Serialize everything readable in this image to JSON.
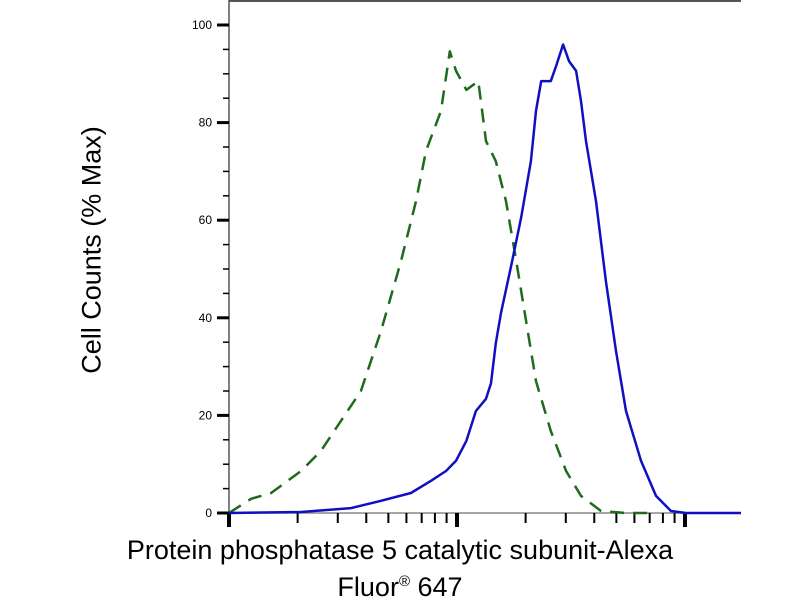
{
  "chart_data": {
    "type": "line",
    "title": "",
    "xlabel_line1": "Protein phosphatase 5 catalytic subunit-Alexa",
    "xlabel_line2_a": "Fluor",
    "xlabel_line2_sup": "®",
    "xlabel_line2_b": " 647",
    "ylabel": "Cell Counts (% Max)",
    "x_scale": "log",
    "xlim": [
      1,
      176
    ],
    "x_major_ticks": [
      1,
      10,
      100
    ],
    "x_tick_labels_shown": false,
    "ylim": [
      0,
      100
    ],
    "y_ticks": [
      0,
      20,
      40,
      60,
      80,
      100
    ],
    "y_tick_labels": [
      "0",
      "20",
      "40",
      "60",
      "80",
      "100"
    ],
    "grid": false,
    "legend": "none",
    "series": [
      {
        "style": "dashed",
        "color": "#1e6b1e",
        "points": [
          [
            1,
            0
          ],
          [
            1.25,
            2.9
          ],
          [
            1.53,
            4.1
          ],
          [
            2.07,
            8.6
          ],
          [
            2.53,
            12.7
          ],
          [
            3.1,
            18.9
          ],
          [
            3.79,
            25
          ],
          [
            4.64,
            37.3
          ],
          [
            5.68,
            51.6
          ],
          [
            6.61,
            63.9
          ],
          [
            7.31,
            74.2
          ],
          [
            8.51,
            82.4
          ],
          [
            9.3,
            94.6
          ],
          [
            9.9,
            90.6
          ],
          [
            11,
            86.7
          ],
          [
            12.4,
            88.5
          ],
          [
            13.4,
            76.2
          ],
          [
            14.8,
            72.1
          ],
          [
            16.4,
            63.9
          ],
          [
            18.2,
            51.6
          ],
          [
            20.1,
            39.3
          ],
          [
            22.2,
            27
          ],
          [
            25.8,
            16.8
          ],
          [
            30.1,
            8.6
          ],
          [
            35,
            3.5
          ],
          [
            42.8,
            0.4
          ],
          [
            55.1,
            0
          ],
          [
            71,
            0
          ]
        ]
      },
      {
        "style": "solid",
        "color": "#1010c0",
        "points": [
          [
            1,
            0
          ],
          [
            2.07,
            0.2
          ],
          [
            3.43,
            1
          ],
          [
            4.64,
            2.5
          ],
          [
            6.28,
            4.1
          ],
          [
            7.69,
            6.6
          ],
          [
            8.95,
            8.6
          ],
          [
            9.9,
            10.7
          ],
          [
            11,
            14.8
          ],
          [
            12.1,
            20.9
          ],
          [
            13.4,
            23.4
          ],
          [
            14.1,
            26.6
          ],
          [
            14.8,
            34.8
          ],
          [
            15.6,
            41
          ],
          [
            17.3,
            50.8
          ],
          [
            19.1,
            60.5
          ],
          [
            21.1,
            72.1
          ],
          [
            22.2,
            82.4
          ],
          [
            23.4,
            88.5
          ],
          [
            25.8,
            88.5
          ],
          [
            27.2,
            91.6
          ],
          [
            29.2,
            96
          ],
          [
            31,
            92.6
          ],
          [
            33.3,
            90.6
          ],
          [
            35,
            84.4
          ],
          [
            36.8,
            76.2
          ],
          [
            40.7,
            63.9
          ],
          [
            45,
            47.5
          ],
          [
            49.8,
            33.2
          ],
          [
            55.1,
            20.9
          ],
          [
            64.1,
            10.7
          ],
          [
            74.6,
            3.5
          ],
          [
            86.8,
            0.4
          ],
          [
            101,
            0
          ],
          [
            176,
            0
          ]
        ]
      }
    ]
  }
}
